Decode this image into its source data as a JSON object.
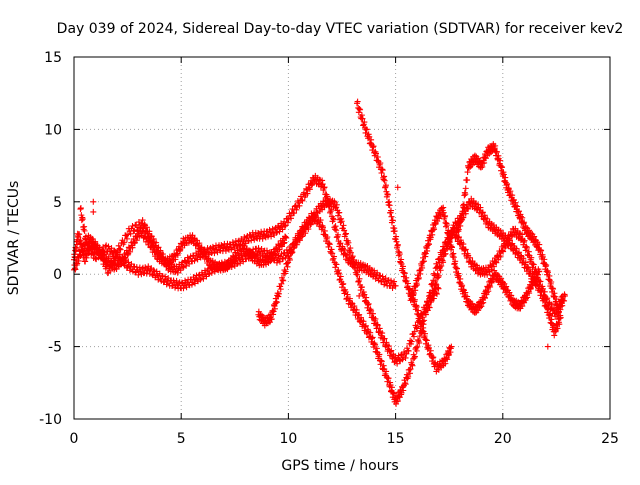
{
  "chart_data": {
    "type": "scatter",
    "title": "Day 039 of 2024, Sidereal Day-to-day VTEC variation (SDTVAR) for receiver kev2",
    "xlabel": "GPS time / hours",
    "ylabel": "SDTVAR / TECUs",
    "xlim": [
      0,
      25
    ],
    "ylim": [
      -10,
      15
    ],
    "xticks": [
      0,
      5,
      10,
      15,
      20,
      25
    ],
    "yticks": [
      -10,
      -5,
      0,
      5,
      10,
      15
    ],
    "xtick_labels": [
      "0",
      "5",
      "10",
      "15",
      "20",
      "25"
    ],
    "ytick_labels": [
      "-10",
      "-5",
      "0",
      "5",
      "10",
      "15"
    ],
    "grid": true,
    "marker": "+",
    "series": [
      {
        "name": "arc-a",
        "color": "#ff0000",
        "points": [
          [
            0.0,
            1.0
          ],
          [
            0.2,
            2.8
          ],
          [
            0.5,
            1.0
          ],
          [
            0.8,
            2.2
          ],
          [
            1.2,
            1.5
          ],
          [
            1.6,
            0.2
          ],
          [
            2.0,
            1.5
          ],
          [
            2.6,
            3.0
          ],
          [
            3.2,
            3.5
          ],
          [
            3.6,
            2.5
          ],
          [
            4.0,
            1.5
          ],
          [
            4.4,
            0.5
          ],
          [
            4.8,
            0.3
          ],
          [
            5.3,
            0.9
          ],
          [
            5.8,
            1.3
          ],
          [
            6.3,
            1.6
          ],
          [
            6.8,
            1.8
          ],
          [
            7.3,
            1.9
          ],
          [
            7.8,
            2.2
          ],
          [
            8.3,
            2.6
          ],
          [
            8.8,
            2.7
          ],
          [
            9.3,
            2.9
          ],
          [
            9.8,
            3.4
          ],
          [
            10.3,
            4.5
          ],
          [
            10.8,
            5.6
          ],
          [
            11.2,
            6.6
          ],
          [
            11.6,
            6.2
          ],
          [
            12.0,
            4.2
          ],
          [
            12.4,
            2.0
          ],
          [
            12.8,
            1.0
          ],
          [
            13.2,
            0.6
          ],
          [
            13.6,
            0.4
          ],
          [
            14.0,
            0.0
          ],
          [
            14.5,
            -0.5
          ],
          [
            15.0,
            -0.8
          ]
        ]
      },
      {
        "name": "arc-b",
        "color": "#ff0000",
        "points": [
          [
            0.3,
            4.5
          ],
          [
            0.6,
            2.0
          ],
          [
            1.0,
            1.2
          ],
          [
            1.5,
            1.8
          ],
          [
            2.0,
            1.3
          ],
          [
            2.5,
            0.6
          ],
          [
            3.0,
            0.2
          ],
          [
            3.5,
            0.3
          ],
          [
            4.0,
            -0.2
          ],
          [
            4.5,
            -0.6
          ],
          [
            5.0,
            -0.8
          ],
          [
            5.5,
            -0.5
          ],
          [
            6.0,
            -0.1
          ],
          [
            6.5,
            0.4
          ],
          [
            7.0,
            0.6
          ],
          [
            7.5,
            0.8
          ],
          [
            8.0,
            1.2
          ],
          [
            8.5,
            1.6
          ],
          [
            9.0,
            1.4
          ],
          [
            9.5,
            1.0
          ],
          [
            10.0,
            1.5
          ],
          [
            10.5,
            2.5
          ],
          [
            11.0,
            3.5
          ],
          [
            11.4,
            4.5
          ],
          [
            11.8,
            5.0
          ],
          [
            12.2,
            4.8
          ],
          [
            12.6,
            3.0
          ],
          [
            13.0,
            1.0
          ],
          [
            13.4,
            -1.0
          ],
          [
            13.8,
            -2.5
          ],
          [
            14.2,
            -3.8
          ],
          [
            14.6,
            -5.0
          ],
          [
            15.0,
            -6.0
          ],
          [
            15.5,
            -5.5
          ],
          [
            16.0,
            -3.5
          ],
          [
            16.5,
            -2.0
          ],
          [
            17.0,
            -1.0
          ]
        ]
      },
      {
        "name": "arc-c",
        "color": "#ff0000",
        "points": [
          [
            0.0,
            0.3
          ],
          [
            0.3,
            1.5
          ],
          [
            0.7,
            2.5
          ],
          [
            1.1,
            1.8
          ],
          [
            1.5,
            1.0
          ],
          [
            1.9,
            0.5
          ],
          [
            2.3,
            1.0
          ],
          [
            2.7,
            2.0
          ],
          [
            3.1,
            3.0
          ],
          [
            3.5,
            2.2
          ],
          [
            3.9,
            1.2
          ],
          [
            4.3,
            0.8
          ],
          [
            4.7,
            1.2
          ],
          [
            5.1,
            2.2
          ],
          [
            5.5,
            2.5
          ],
          [
            5.9,
            1.8
          ],
          [
            6.3,
            0.8
          ],
          [
            6.7,
            0.5
          ],
          [
            7.1,
            0.5
          ],
          [
            7.5,
            1.2
          ],
          [
            7.9,
            1.8
          ],
          [
            8.3,
            1.2
          ],
          [
            8.7,
            0.8
          ],
          [
            9.1,
            1.0
          ],
          [
            9.5,
            1.8
          ],
          [
            9.9,
            2.5
          ]
        ]
      },
      {
        "name": "arc-d",
        "color": "#ff0000",
        "points": [
          [
            8.6,
            -2.8
          ],
          [
            8.9,
            -3.3
          ],
          [
            9.2,
            -3.0
          ],
          [
            9.5,
            -1.5
          ],
          [
            9.9,
            0.5
          ],
          [
            10.3,
            2.2
          ],
          [
            10.7,
            3.2
          ],
          [
            11.1,
            4.0
          ],
          [
            11.5,
            3.5
          ],
          [
            11.9,
            2.0
          ],
          [
            12.3,
            0.2
          ],
          [
            12.7,
            -1.5
          ],
          [
            13.1,
            -2.5
          ],
          [
            13.5,
            -3.5
          ],
          [
            13.9,
            -4.5
          ],
          [
            14.3,
            -6.0
          ],
          [
            14.7,
            -7.5
          ],
          [
            15.0,
            -8.8
          ],
          [
            15.3,
            -8.0
          ],
          [
            15.7,
            -6.5
          ],
          [
            16.1,
            -4.5
          ],
          [
            16.5,
            -2.0
          ],
          [
            16.9,
            0.5
          ],
          [
            17.3,
            2.0
          ],
          [
            17.7,
            3.0
          ],
          [
            18.1,
            2.0
          ],
          [
            18.5,
            0.8
          ],
          [
            18.9,
            0.2
          ],
          [
            19.3,
            0.2
          ],
          [
            19.7,
            1.0
          ],
          [
            20.1,
            2.0
          ],
          [
            20.5,
            3.0
          ],
          [
            20.9,
            2.5
          ],
          [
            21.3,
            1.0
          ],
          [
            21.7,
            -0.5
          ],
          [
            22.1,
            -2.0
          ],
          [
            22.5,
            -2.8
          ],
          [
            22.8,
            -1.5
          ]
        ]
      },
      {
        "name": "arc-e",
        "color": "#ff0000",
        "points": [
          [
            13.2,
            11.8
          ],
          [
            13.6,
            10.0
          ],
          [
            14.0,
            8.5
          ],
          [
            14.4,
            7.0
          ],
          [
            14.7,
            4.8
          ],
          [
            15.0,
            2.5
          ],
          [
            15.3,
            0.5
          ],
          [
            15.6,
            -1.0
          ],
          [
            15.9,
            -2.0
          ],
          [
            16.2,
            -3.5
          ],
          [
            16.5,
            -5.0
          ],
          [
            16.9,
            -6.5
          ],
          [
            17.3,
            -6.0
          ],
          [
            17.6,
            -5.0
          ]
        ]
      },
      {
        "name": "arc-f",
        "color": "#ff0000",
        "points": [
          [
            15.7,
            -1.8
          ],
          [
            16.0,
            -0.5
          ],
          [
            16.3,
            1.0
          ],
          [
            16.6,
            2.5
          ],
          [
            16.9,
            3.8
          ],
          [
            17.2,
            4.5
          ],
          [
            17.5,
            2.5
          ],
          [
            17.8,
            0.5
          ],
          [
            18.1,
            -1.0
          ],
          [
            18.4,
            -2.0
          ],
          [
            18.7,
            -2.5
          ],
          [
            19.0,
            -2.0
          ],
          [
            19.3,
            -1.0
          ],
          [
            19.6,
            0.0
          ],
          [
            19.9,
            -0.5
          ],
          [
            20.2,
            -1.2
          ],
          [
            20.5,
            -2.0
          ],
          [
            20.8,
            -2.2
          ],
          [
            21.1,
            -1.5
          ],
          [
            21.4,
            -0.5
          ],
          [
            21.7,
            0.2
          ]
        ]
      },
      {
        "name": "arc-g",
        "color": "#ff0000",
        "points": [
          [
            17.8,
            2.5
          ],
          [
            18.1,
            4.0
          ],
          [
            18.4,
            7.5
          ],
          [
            18.7,
            8.0
          ],
          [
            19.0,
            7.5
          ],
          [
            19.3,
            8.5
          ],
          [
            19.6,
            8.8
          ],
          [
            19.9,
            7.5
          ],
          [
            20.2,
            6.0
          ],
          [
            20.5,
            5.0
          ],
          [
            20.8,
            4.0
          ],
          [
            21.1,
            3.0
          ],
          [
            21.4,
            2.5
          ],
          [
            21.7,
            1.8
          ],
          [
            22.0,
            0.5
          ],
          [
            22.3,
            -1.0
          ],
          [
            22.6,
            -2.5
          ],
          [
            22.9,
            -1.5
          ]
        ]
      },
      {
        "name": "arc-h",
        "color": "#ff0000",
        "points": [
          [
            16.5,
            -2.5
          ],
          [
            16.9,
            -0.5
          ],
          [
            17.3,
            1.5
          ],
          [
            17.7,
            3.2
          ],
          [
            18.1,
            4.0
          ],
          [
            18.5,
            5.0
          ],
          [
            18.9,
            4.5
          ],
          [
            19.3,
            3.5
          ],
          [
            19.7,
            3.0
          ],
          [
            20.1,
            2.5
          ],
          [
            20.5,
            1.8
          ],
          [
            20.9,
            1.0
          ],
          [
            21.3,
            0.0
          ],
          [
            21.7,
            -1.0
          ],
          [
            22.1,
            -2.5
          ],
          [
            22.4,
            -4.0
          ],
          [
            22.7,
            -3.0
          ]
        ]
      }
    ],
    "extra_points": [
      [
        0.9,
        5.0
      ],
      [
        0.9,
        4.3
      ],
      [
        22.1,
        -5.0
      ],
      [
        13.3,
        -1.5
      ],
      [
        15.1,
        6.0
      ]
    ]
  }
}
